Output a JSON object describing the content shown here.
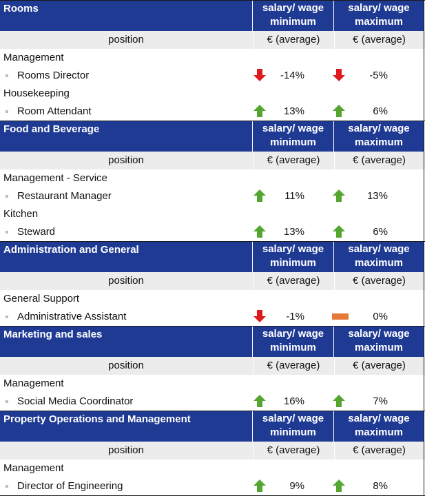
{
  "headers": {
    "min": [
      "salary/ wage",
      "minimum"
    ],
    "max": [
      "salary/ wage",
      "maximum"
    ]
  },
  "subheader": {
    "position": "position",
    "avg": "€ (average)"
  },
  "colors": {
    "header_bg": "#1f3a93",
    "up": "#54a631",
    "down": "#e0191c",
    "flat": "#e47a3a"
  },
  "sections": [
    {
      "title": "Rooms",
      "groups": [
        {
          "name": "Management",
          "rows": [
            {
              "role": "Rooms Director",
              "min": "-14%",
              "min_trend": "down",
              "max": "-5%",
              "max_trend": "down"
            }
          ]
        },
        {
          "name": "Housekeeping",
          "rows": [
            {
              "role": "Room Attendant",
              "min": "13%",
              "min_trend": "up",
              "max": "6%",
              "max_trend": "up"
            }
          ]
        }
      ]
    },
    {
      "title": "Food and Beverage",
      "groups": [
        {
          "name": "Management - Service",
          "rows": [
            {
              "role": "Restaurant Manager",
              "min": "11%",
              "min_trend": "up",
              "max": "13%",
              "max_trend": "up"
            }
          ]
        },
        {
          "name": "Kitchen",
          "rows": [
            {
              "role": "Steward",
              "min": "13%",
              "min_trend": "up",
              "max": "6%",
              "max_trend": "up"
            }
          ]
        }
      ]
    },
    {
      "title": "Administration and General",
      "groups": [
        {
          "name": "General Support",
          "rows": [
            {
              "role": "Administrative Assistant",
              "min": "-1%",
              "min_trend": "down",
              "max": "0%",
              "max_trend": "flat"
            }
          ]
        }
      ]
    },
    {
      "title": "Marketing and sales",
      "groups": [
        {
          "name": "Management",
          "rows": [
            {
              "role": "Social Media Coordinator",
              "min": "16%",
              "min_trend": "up",
              "max": "7%",
              "max_trend": "up"
            }
          ]
        }
      ]
    },
    {
      "title": "Property Operations and Management",
      "groups": [
        {
          "name": "Management",
          "rows": [
            {
              "role": "Director of Engineering",
              "min": "9%",
              "min_trend": "up",
              "max": "8%",
              "max_trend": "up"
            }
          ]
        }
      ]
    }
  ]
}
